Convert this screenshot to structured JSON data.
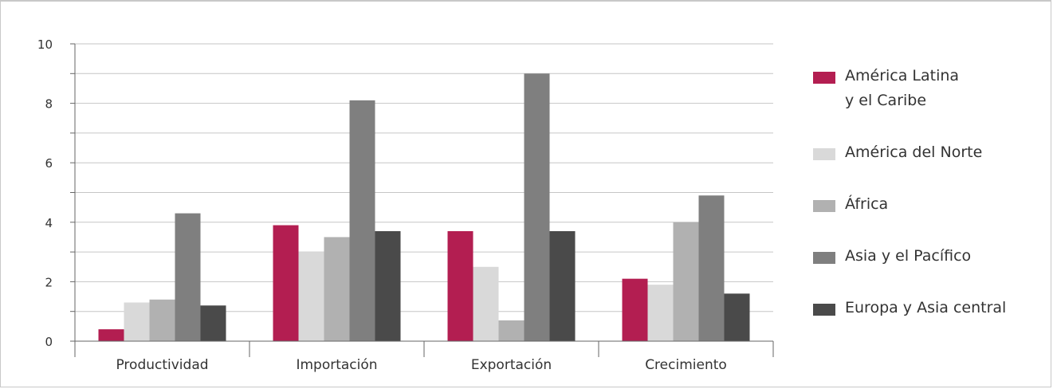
{
  "chart_data": {
    "type": "bar",
    "categories": [
      "Productividad",
      "Importación",
      "Exportación",
      "Crecimiento"
    ],
    "series": [
      {
        "name": "América Latina\ny el Caribe",
        "color": "#b31e51",
        "values": [
          0.4,
          3.9,
          3.7,
          2.1
        ]
      },
      {
        "name": "América del Norte",
        "color": "#d9d9d9",
        "values": [
          1.3,
          3.0,
          2.5,
          1.9
        ]
      },
      {
        "name": "África",
        "color": "#b1b1b1",
        "values": [
          1.4,
          3.5,
          0.7,
          4.0
        ]
      },
      {
        "name": "Asia y el Pacífico",
        "color": "#7f7f7f",
        "values": [
          4.3,
          8.1,
          9.0,
          4.9
        ]
      },
      {
        "name": "Europa y Asia central",
        "color": "#4a4a4a",
        "values": [
          1.2,
          3.7,
          3.7,
          1.6
        ]
      }
    ],
    "ylim": [
      0,
      10
    ],
    "yticks": [
      0,
      2,
      4,
      6,
      8,
      10
    ],
    "ytick_labels": [
      "0",
      "2",
      "4",
      "6",
      "8",
      "10"
    ],
    "grid": true,
    "legend_position": "right",
    "title": "",
    "xlabel": "",
    "ylabel": ""
  }
}
